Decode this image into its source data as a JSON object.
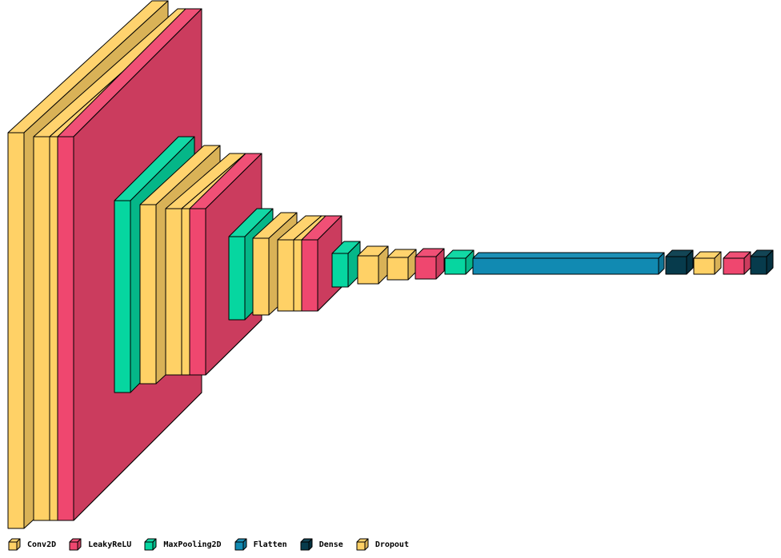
{
  "colors": {
    "Conv2D": "#FFD166",
    "LeakyReLU": "#EF476F",
    "MaxPooling2D": "#06D6A0",
    "Flatten": "#118AB2",
    "Dense": "#073B4C",
    "Dropout": "#FFD166"
  },
  "legend": [
    {
      "label": "Conv2D",
      "color": "#FFD166"
    },
    {
      "label": "LeakyReLU",
      "color": "#EF476F"
    },
    {
      "label": "MaxPooling2D",
      "color": "#06D6A0"
    },
    {
      "label": "Flatten",
      "color": "#118AB2"
    },
    {
      "label": "Dense",
      "color": "#073B4C"
    },
    {
      "label": "Dropout",
      "color": "#FFD166"
    }
  ],
  "layers": [
    {
      "type": "Conv2D"
    },
    {
      "type": "Conv2D"
    },
    {
      "type": "Dropout"
    },
    {
      "type": "LeakyReLU"
    },
    {
      "type": "MaxPooling2D"
    },
    {
      "type": "Conv2D"
    },
    {
      "type": "Conv2D"
    },
    {
      "type": "Dropout"
    },
    {
      "type": "LeakyReLU"
    },
    {
      "type": "MaxPooling2D"
    },
    {
      "type": "Conv2D"
    },
    {
      "type": "Conv2D"
    },
    {
      "type": "Dropout"
    },
    {
      "type": "LeakyReLU"
    },
    {
      "type": "MaxPooling2D"
    },
    {
      "type": "Conv2D"
    },
    {
      "type": "Dropout"
    },
    {
      "type": "LeakyReLU"
    },
    {
      "type": "MaxPooling2D"
    },
    {
      "type": "Flatten"
    },
    {
      "type": "Dense"
    },
    {
      "type": "Dropout"
    },
    {
      "type": "LeakyReLU"
    },
    {
      "type": "Dense"
    }
  ]
}
